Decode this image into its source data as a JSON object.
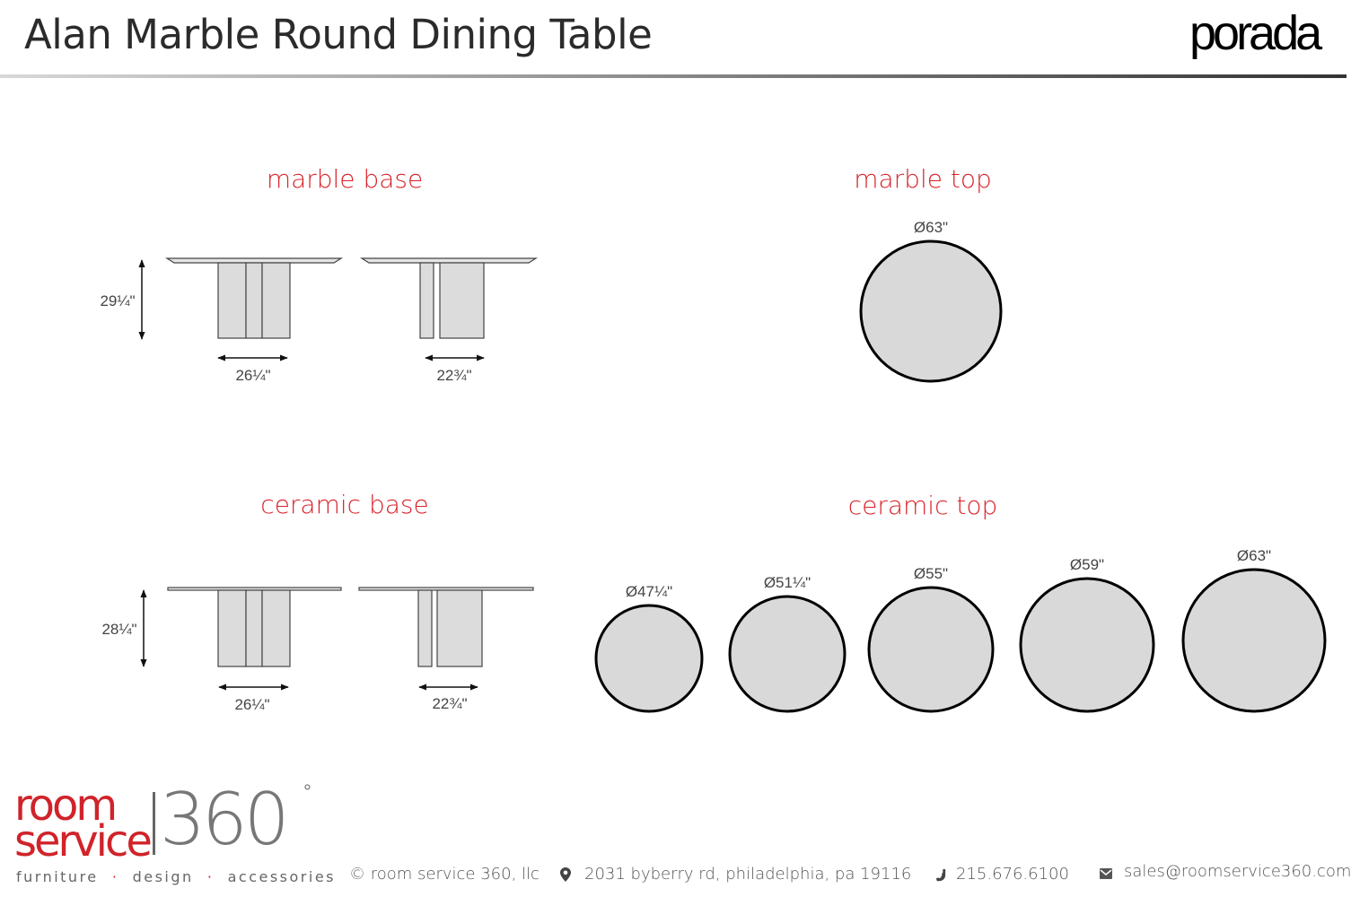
{
  "header": {
    "title": "Alan Marble Round Dining Table",
    "brand_logo": "porada"
  },
  "sections": {
    "marble_base": {
      "label": "marble base",
      "height": "29¼\"",
      "width_front": "26¼\"",
      "width_side": "22¾\""
    },
    "marble_top": {
      "label": "marble top",
      "diameters": [
        "Ø63\""
      ]
    },
    "ceramic_base": {
      "label": "ceramic base",
      "height": "28¼\"",
      "width_front": "26¼\"",
      "width_side": "22¾\""
    },
    "ceramic_top": {
      "label": "ceramic top",
      "diameters": [
        "Ø47¼\"",
        "Ø51¼\"",
        "Ø55\"",
        "Ø59\"",
        "Ø63\""
      ]
    }
  },
  "colors": {
    "accent": "#d8232a",
    "shape_fill": "#d9d9d9"
  },
  "footer": {
    "logo": {
      "line1": "room",
      "line2": "service",
      "number": "360",
      "degree": "°"
    },
    "tagline": [
      "furniture",
      "design",
      "accessories"
    ],
    "tagline_separator": "·",
    "copyright": "© room service 360, llc",
    "address": "2031 byberry rd, philadelphia, pa 19116",
    "phone": "215.676.6100",
    "email": "sales@roomservice360.com",
    "icons": {
      "address": "map-pin-icon",
      "phone": "phone-icon",
      "email": "envelope-icon"
    }
  }
}
